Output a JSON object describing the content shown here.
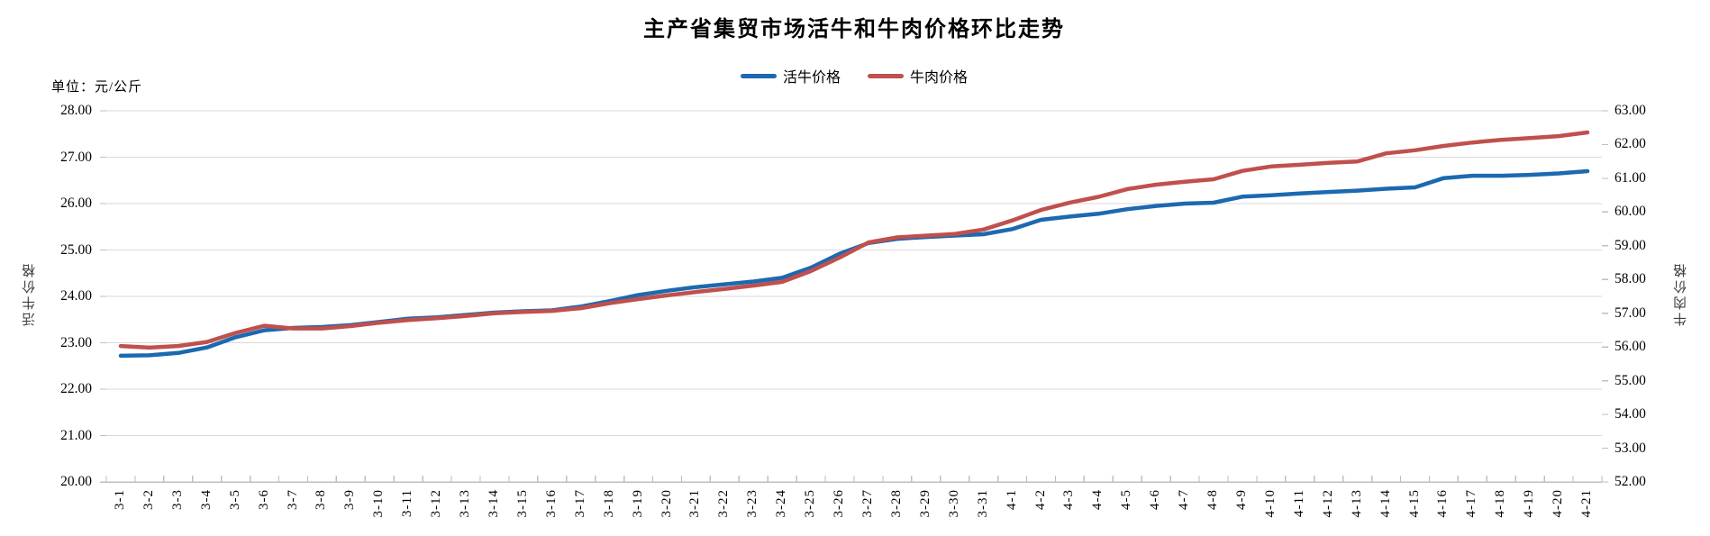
{
  "title": "主产省集贸市场活牛和牛肉价格环比走势",
  "unit_label": "单位：元/公斤",
  "chart_data": {
    "type": "line",
    "title": "主产省集贸市场活牛和牛肉价格环比走势",
    "unit": "元/公斤",
    "legend_position": "top-center",
    "grid": true,
    "categories": [
      "3-1",
      "3-2",
      "3-3",
      "3-4",
      "3-5",
      "3-6",
      "3-7",
      "3-8",
      "3-9",
      "3-10",
      "3-11",
      "3-12",
      "3-13",
      "3-14",
      "3-15",
      "3-16",
      "3-17",
      "3-18",
      "3-19",
      "3-20",
      "3-21",
      "3-22",
      "3-23",
      "3-24",
      "3-25",
      "3-26",
      "3-27",
      "3-28",
      "3-29",
      "3-30",
      "3-31",
      "4-1",
      "4-2",
      "4-3",
      "4-4",
      "4-5",
      "4-6",
      "4-7",
      "4-8",
      "4-9",
      "4-10",
      "4-11",
      "4-12",
      "4-13",
      "4-14",
      "4-15",
      "4-16",
      "4-17",
      "4-18",
      "4-19",
      "4-20",
      "4-21"
    ],
    "series": [
      {
        "name": "活牛价格",
        "axis": "left",
        "color": "#1c69b0",
        "values": [
          22.72,
          22.73,
          22.78,
          22.9,
          23.12,
          23.27,
          23.32,
          23.34,
          23.38,
          23.45,
          23.52,
          23.55,
          23.6,
          23.65,
          23.68,
          23.7,
          23.78,
          23.9,
          24.03,
          24.12,
          24.2,
          24.26,
          24.32,
          24.4,
          24.62,
          24.92,
          25.15,
          25.24,
          25.28,
          25.31,
          25.34,
          25.45,
          25.65,
          25.72,
          25.78,
          25.88,
          25.95,
          26.0,
          26.02,
          26.15,
          26.18,
          26.22,
          26.25,
          26.28,
          26.32,
          26.35,
          26.55,
          26.6,
          26.6,
          26.62,
          26.65,
          26.7
        ]
      },
      {
        "name": "牛肉价格",
        "axis": "right",
        "color": "#c0504d",
        "values": [
          56.03,
          55.98,
          56.03,
          56.15,
          56.42,
          56.63,
          56.55,
          56.55,
          56.62,
          56.72,
          56.8,
          56.85,
          56.92,
          57.0,
          57.04,
          57.07,
          57.15,
          57.3,
          57.42,
          57.53,
          57.63,
          57.72,
          57.82,
          57.93,
          58.25,
          58.65,
          59.1,
          59.25,
          59.3,
          59.35,
          59.48,
          59.75,
          60.06,
          60.28,
          60.45,
          60.68,
          60.81,
          60.9,
          60.97,
          61.22,
          61.35,
          61.4,
          61.46,
          61.5,
          61.74,
          61.83,
          61.96,
          62.06,
          62.14,
          62.19,
          62.25,
          62.36
        ]
      }
    ],
    "left_axis": {
      "title": "活牛价格",
      "min": 20,
      "max": 28,
      "step": 1,
      "tick_labels": [
        "20.00",
        "21.00",
        "22.00",
        "23.00",
        "24.00",
        "25.00",
        "26.00",
        "27.00",
        "28.00"
      ]
    },
    "right_axis": {
      "title": "牛肉价格",
      "min": 52,
      "max": 63,
      "step": 1,
      "tick_labels": [
        "52.00",
        "53.00",
        "54.00",
        "55.00",
        "56.00",
        "57.00",
        "58.00",
        "59.00",
        "60.00",
        "61.00",
        "62.00",
        "63.00"
      ]
    },
    "colors": {
      "grid": "#d9d9d9",
      "axis": "#bfbfbf",
      "text": "#000000",
      "axis_title": "#404040"
    }
  }
}
